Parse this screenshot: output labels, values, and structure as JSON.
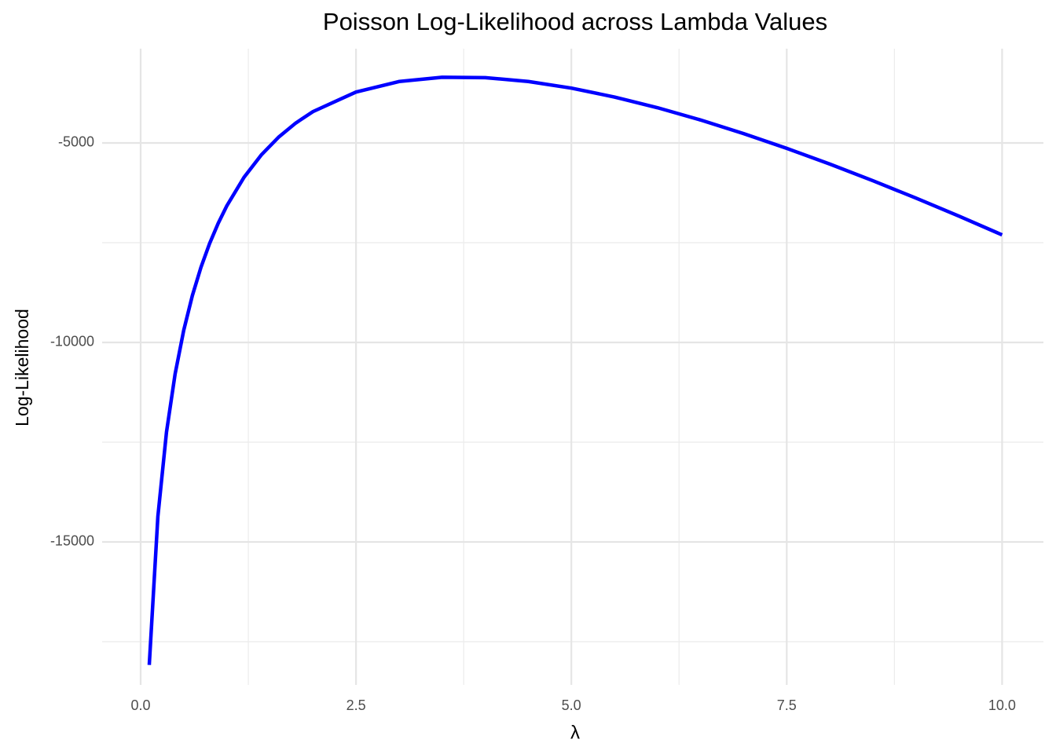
{
  "chart_data": {
    "type": "line",
    "title": "Poisson Log-Likelihood across Lambda Values",
    "x_label": "λ",
    "y_label": "Log-Likelihood",
    "x": [
      0.1,
      0.2,
      0.3,
      0.4,
      0.5,
      0.6,
      0.7,
      0.8,
      0.9,
      1.0,
      1.2,
      1.4,
      1.6,
      1.8,
      2.0,
      2.5,
      3.0,
      3.5,
      4.0,
      4.5,
      5.0,
      5.5,
      6.0,
      6.5,
      7.0,
      7.5,
      8.0,
      8.5,
      9.0,
      9.5,
      10.0
    ],
    "series": [
      {
        "color": "#0000ff",
        "values": [
          -18084,
          -14362,
          -12248,
          -10791,
          -9696,
          -8828,
          -8118,
          -7523,
          -7016,
          -6578,
          -5861,
          -5302,
          -4858,
          -4502,
          -4215,
          -3724,
          -3460,
          -3354,
          -3363,
          -3460,
          -3626,
          -3849,
          -4117,
          -4425,
          -4766,
          -5136,
          -5530,
          -5946,
          -6382,
          -6835,
          -7304
        ]
      }
    ],
    "xlim": [
      -0.447,
      10.48
    ],
    "ylim": [
      -18583,
      -2638
    ],
    "xticks": [
      {
        "value": 0,
        "label": "0.0"
      },
      2.5,
      {
        "value": 5,
        "label": "5.0"
      },
      7.5,
      {
        "value": 10,
        "label": "10.0"
      }
    ],
    "yticks": [
      -15000,
      -10000,
      -5000
    ],
    "x_minor_grid": [
      1.25,
      3.75,
      6.25,
      8.75
    ],
    "y_minor_grid": [
      -17500,
      -12500,
      -7500
    ],
    "grid": true
  }
}
